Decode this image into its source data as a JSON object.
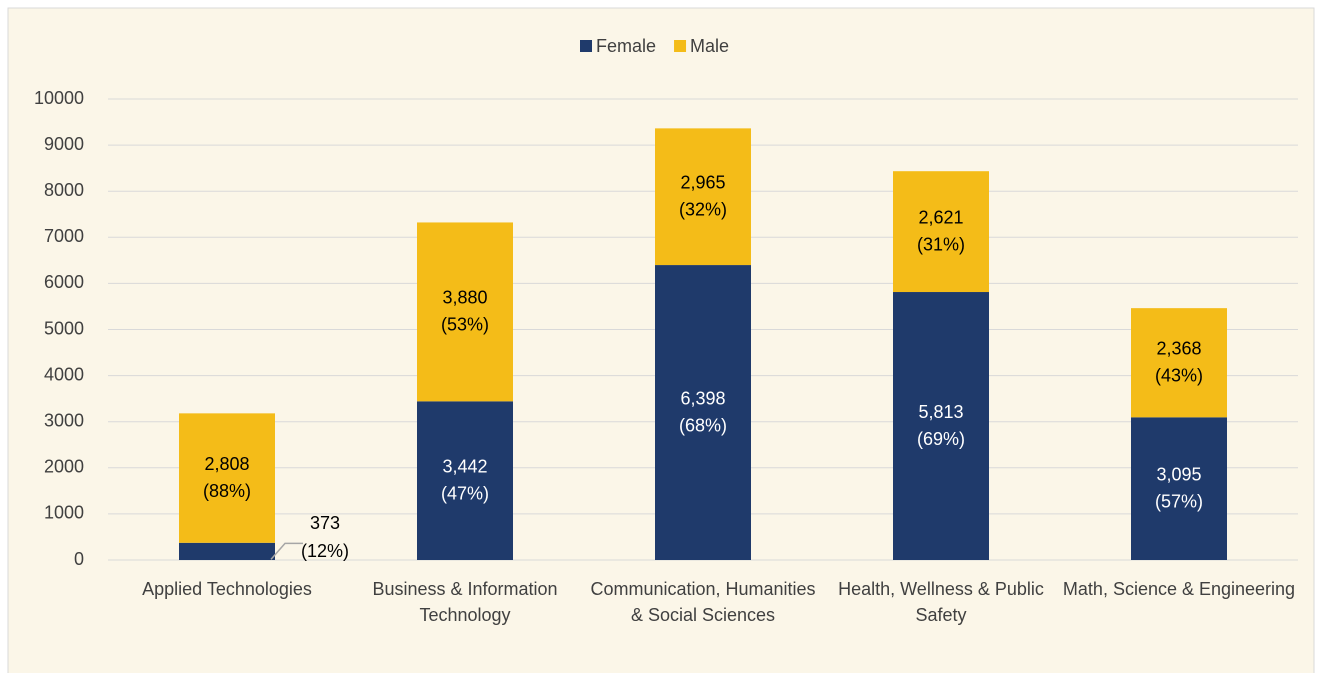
{
  "chart_data": {
    "type": "stacked_bar",
    "categories": [
      "Applied Technologies",
      "Business & Information Technology",
      "Communication, Humanities & Social Sciences",
      "Health, Wellness & Public Safety",
      "Math, Science & Engineering"
    ],
    "series": [
      {
        "name": "Female",
        "color": "#1f3a6b",
        "values": [
          373,
          3442,
          6398,
          5813,
          3095
        ],
        "value_labels": [
          "373",
          "3,442",
          "6,398",
          "5,813",
          "3,095"
        ],
        "percent_labels": [
          "(12%)",
          "(47%)",
          "(68%)",
          "(69%)",
          "(57%)"
        ]
      },
      {
        "name": "Male",
        "color": "#f4bc18",
        "values": [
          2808,
          3880,
          2965,
          2621,
          2368
        ],
        "value_labels": [
          "2,808",
          "3,880",
          "2,965",
          "2,621",
          "2,368"
        ],
        "percent_labels": [
          "(88%)",
          "(53%)",
          "(32%)",
          "(31%)",
          "(43%)"
        ]
      }
    ],
    "ylim": [
      0,
      10000
    ],
    "yticks": [
      0,
      1000,
      2000,
      3000,
      4000,
      5000,
      6000,
      7000,
      8000,
      9000,
      10000
    ],
    "grid": true,
    "legend": "top"
  }
}
